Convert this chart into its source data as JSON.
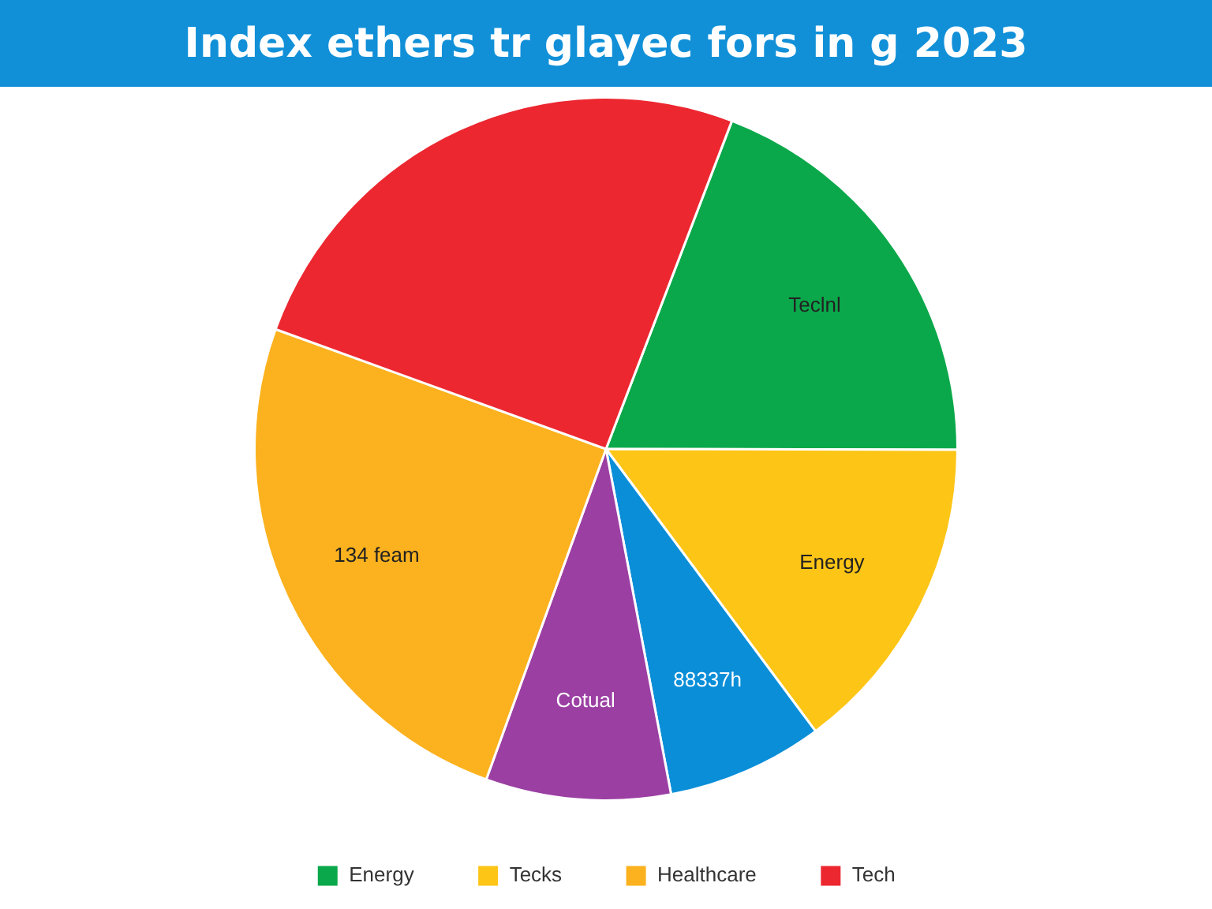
{
  "chart_data": {
    "type": "pie",
    "title": "Index ethers tr glayec fors in g 2023",
    "categories": [
      "Energy",
      "Tecks",
      null,
      null,
      "Healthcare",
      "Tech"
    ],
    "values": [
      19.2,
      14.8,
      7.2,
      8.5,
      25.0,
      25.3
    ],
    "colors": [
      "#0aa84a",
      "#fdc516",
      "#0a8ed8",
      "#9b3fa3",
      "#fbb21e",
      "#ec2730"
    ],
    "annotations": [
      "Teclnl",
      "Energy",
      "88337h",
      "Cotual",
      "134 feam"
    ],
    "legend": "bottom"
  }
}
